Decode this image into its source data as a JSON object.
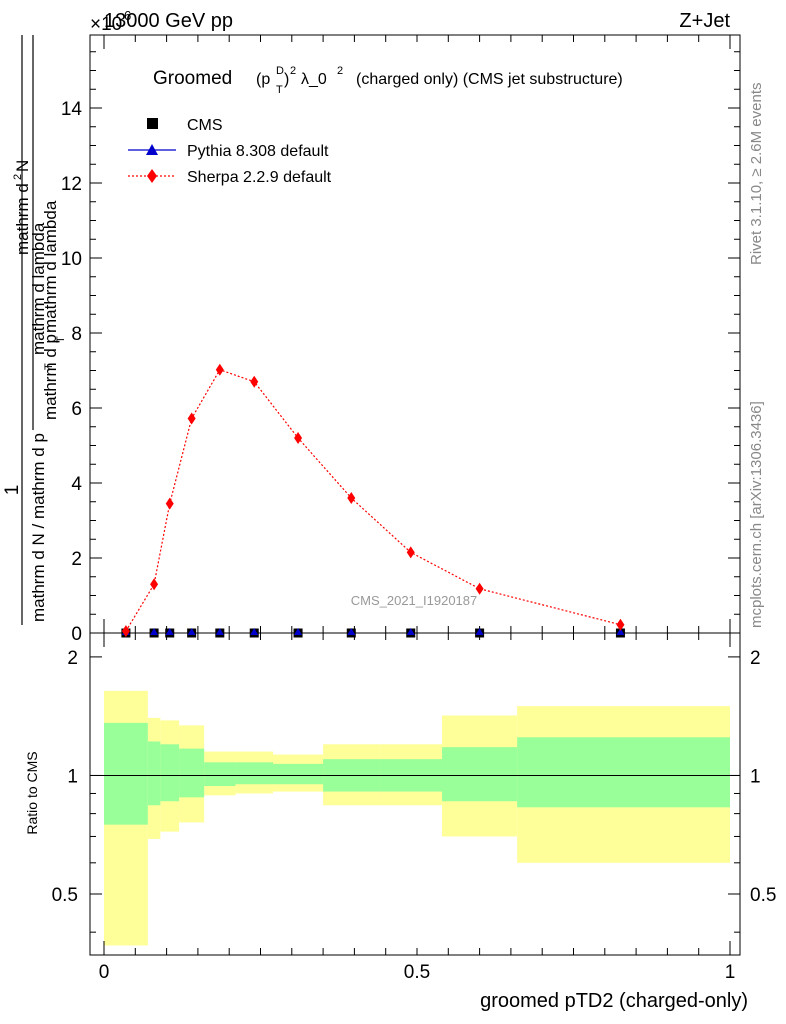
{
  "header": {
    "energy_label": "13000 GeV pp",
    "process_label": "Z+Jet",
    "exponent_label": "×10",
    "exponent_power": "6"
  },
  "side_labels": {
    "rivet": "Rivet 3.1.10, ≥ 2.6M events",
    "mcplots": "mcplots.cern.ch [arXiv:1306.3436]"
  },
  "watermark": "CMS_2021_I1920187",
  "chart_data": [
    {
      "type": "line",
      "title": {
        "main": "Groomed",
        "p": "(p",
        "sup_D": "D",
        "sub_T": "T",
        "close": ")",
        "sup_2": "2",
        "lambda": "λ_0",
        "sup_2b": "2",
        "rest": "(charged only) (CMS jet substructure)"
      },
      "ylabel": {
        "num_one": "1",
        "den": "mathrm d N / mathrm d p",
        "den_sub": "T",
        "den2": "mathrm d lambda",
        "right_num": "mathrm d",
        "right_sup": "2",
        "right_num2": "N",
        "right_den": "mathrm d p",
        "right_den_sub": "T",
        "right_den2": "mathrm d lambda"
      },
      "xlim": [
        0,
        1
      ],
      "ylim": [
        0,
        16
      ],
      "y_scale_note": "×10^6",
      "y_ticks": [
        "0",
        "2",
        "4",
        "6",
        "8",
        "10",
        "12",
        "14"
      ],
      "legend_position": "top-left",
      "series": [
        {
          "name": "CMS",
          "marker": "square",
          "color": "#000000",
          "x": [
            0.035,
            0.08,
            0.105,
            0.14,
            0.185,
            0.24,
            0.31,
            0.395,
            0.49,
            0.6,
            0.825
          ],
          "y": [
            0,
            0,
            0,
            0,
            0,
            0,
            0,
            0,
            0,
            0,
            0
          ]
        },
        {
          "name": "Pythia 8.308 default",
          "marker": "triangle",
          "color": "#0000cc",
          "x": [
            0.035,
            0.08,
            0.105,
            0.14,
            0.185,
            0.24,
            0.31,
            0.395,
            0.49,
            0.6,
            0.825
          ],
          "y": [
            0,
            0,
            0,
            0,
            0,
            0,
            0,
            0,
            0,
            0,
            0
          ]
        },
        {
          "name": "Sherpa 2.2.9 default",
          "marker": "diamond",
          "color": "#ff0000",
          "x": [
            0.035,
            0.08,
            0.105,
            0.14,
            0.185,
            0.24,
            0.31,
            0.395,
            0.49,
            0.6,
            0.825
          ],
          "y": [
            0.05,
            1.3,
            3.45,
            5.72,
            7.02,
            6.7,
            5.2,
            3.6,
            2.15,
            1.18,
            0.22
          ]
        }
      ]
    },
    {
      "type": "area",
      "ylabel": "Ratio to CMS",
      "xlabel": "groomed pTD2 (charged-only)",
      "xlim": [
        0,
        1
      ],
      "ylim": [
        0.35,
        2.3
      ],
      "x_ticks": [
        "0",
        "0.5",
        "1"
      ],
      "y_ticks": [
        "0.5",
        "1",
        "2"
      ],
      "reference_line": 1,
      "bins": [
        {
          "x0": 0.0,
          "x1": 0.07,
          "yellow": [
            0.37,
            1.64
          ],
          "green": [
            0.75,
            1.36
          ]
        },
        {
          "x0": 0.07,
          "x1": 0.09,
          "yellow": [
            0.69,
            1.4
          ],
          "green": [
            0.84,
            1.22
          ]
        },
        {
          "x0": 0.09,
          "x1": 0.12,
          "yellow": [
            0.72,
            1.38
          ],
          "green": [
            0.86,
            1.2
          ]
        },
        {
          "x0": 0.12,
          "x1": 0.16,
          "yellow": [
            0.76,
            1.34
          ],
          "green": [
            0.88,
            1.17
          ]
        },
        {
          "x0": 0.16,
          "x1": 0.21,
          "yellow": [
            0.89,
            1.15
          ],
          "green": [
            0.94,
            1.08
          ]
        },
        {
          "x0": 0.21,
          "x1": 0.27,
          "yellow": [
            0.9,
            1.15
          ],
          "green": [
            0.95,
            1.08
          ]
        },
        {
          "x0": 0.27,
          "x1": 0.35,
          "yellow": [
            0.91,
            1.13
          ],
          "green": [
            0.95,
            1.07
          ]
        },
        {
          "x0": 0.35,
          "x1": 0.44,
          "yellow": [
            0.84,
            1.2
          ],
          "green": [
            0.91,
            1.1
          ]
        },
        {
          "x0": 0.44,
          "x1": 0.54,
          "yellow": [
            0.84,
            1.2
          ],
          "green": [
            0.91,
            1.1
          ]
        },
        {
          "x0": 0.54,
          "x1": 0.66,
          "yellow": [
            0.7,
            1.42
          ],
          "green": [
            0.86,
            1.18
          ]
        },
        {
          "x0": 0.66,
          "x1": 1.0,
          "yellow": [
            0.6,
            1.5
          ],
          "green": [
            0.83,
            1.25
          ]
        }
      ],
      "colors": {
        "yellow": "#ffff99",
        "green": "#99ff99"
      }
    }
  ]
}
